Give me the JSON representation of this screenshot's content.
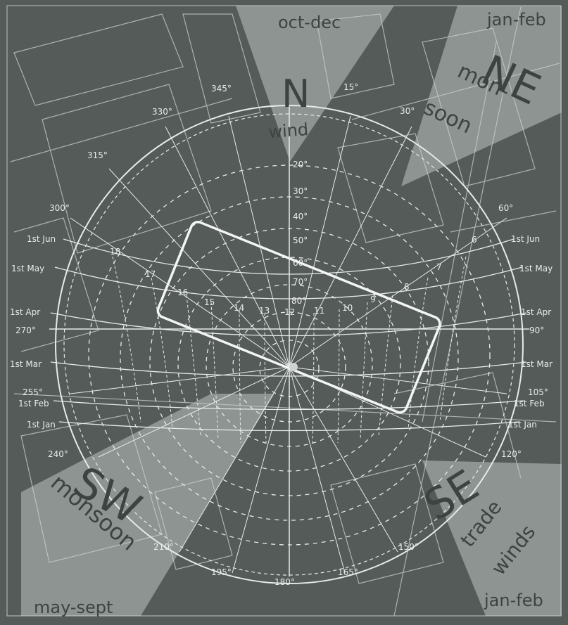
{
  "colors": {
    "background": "#555b59",
    "wind_wedge": "#8e9492",
    "lines": "#dfe4e2",
    "wind_text": "#3d4341"
  },
  "top": {
    "period": "oct-dec",
    "north": "N",
    "wind": "wind"
  },
  "ne": {
    "code": "NE",
    "line1": "mon-",
    "line2": "soon",
    "period": "jan-feb"
  },
  "sw": {
    "code": "SW",
    "word": "monsoon",
    "period": "may-sept"
  },
  "se": {
    "code": "SE",
    "line1": "trade",
    "line2": "winds",
    "period": "jan-feb"
  },
  "azimuth_labels": [
    "345°",
    "15°",
    "30°",
    "330°",
    "315°",
    "300°",
    "60°",
    "270°",
    "90°",
    "255°",
    "105°",
    "240°",
    "120°",
    "210°",
    "150°",
    "195°",
    "180°",
    "165°"
  ],
  "altitude_labels": [
    "20°",
    "30°",
    "40°",
    "50°",
    "60°",
    "70°",
    "80°"
  ],
  "date_labels_left": [
    "1st Jun",
    "1st May",
    "1st Apr",
    "1st Mar",
    "1st Feb",
    "1st Jan"
  ],
  "date_labels_right": [
    "1st Jun",
    "1st May",
    "1st Apr",
    "1st Mar",
    "1st Feb",
    "1st Jan"
  ],
  "hour_labels": [
    "18",
    "17",
    "16",
    "15",
    "14",
    "13",
    "12",
    "11",
    "10",
    "9",
    "8",
    "7",
    "6"
  ]
}
